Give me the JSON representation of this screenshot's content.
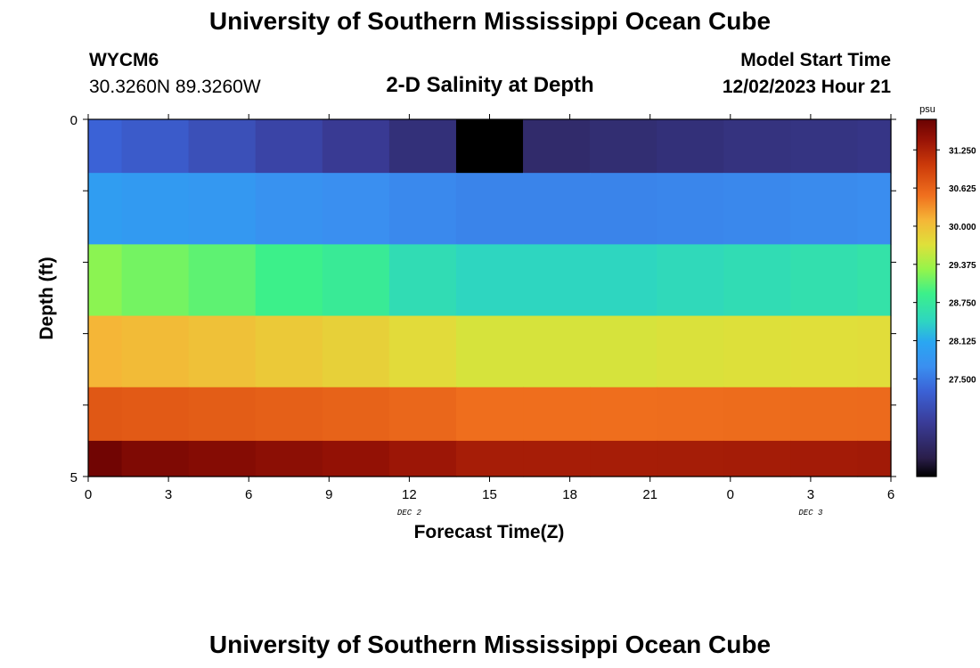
{
  "header": {
    "title": "University of Southern Mississippi Ocean Cube",
    "station_id": "WYCM6",
    "coords": "30.3260N  89.3260W",
    "plot_title": "2-D Salinity at Depth",
    "model_start_label": "Model Start Time",
    "model_start_value": "12/02/2023 Hour 21"
  },
  "footer": {
    "title": "University of Southern Mississippi Ocean Cube"
  },
  "chart_data": {
    "type": "heatmap",
    "title": "2-D Salinity at Depth",
    "xlabel": "Forecast Time(Z)",
    "ylabel": "Depth (ft)",
    "x_ticks": [
      "0",
      "3",
      "6",
      "9",
      "12",
      "15",
      "18",
      "21",
      "0",
      "3",
      "6"
    ],
    "x_range_hours": [
      0,
      30
    ],
    "day_labels": [
      {
        "text": "DEC 2",
        "at_hour": 12
      },
      {
        "text": "DEC 3",
        "at_hour": 27
      }
    ],
    "y_ticks": [
      "0",
      "5"
    ],
    "y_range": [
      0,
      5
    ],
    "column_times": [
      0,
      2.5,
      5,
      7.5,
      10,
      12.5,
      15,
      17.5,
      20,
      22.5,
      25,
      27.5,
      30
    ],
    "depth_layers": [
      0.25,
      1.25,
      2.25,
      3.25,
      4.25,
      4.75
    ],
    "salinity": [
      [
        27.3,
        27.2,
        27.05,
        26.9,
        26.75,
        26.55,
        25.9,
        26.45,
        26.5,
        26.55,
        26.6,
        26.62,
        26.65
      ],
      [
        27.95,
        27.9,
        27.85,
        27.75,
        27.7,
        27.65,
        27.6,
        27.6,
        27.6,
        27.62,
        27.64,
        27.66,
        27.68
      ],
      [
        29.25,
        29.15,
        29.05,
        28.9,
        28.8,
        28.55,
        28.45,
        28.45,
        28.45,
        28.5,
        28.55,
        28.6,
        28.65
      ],
      [
        30.1,
        30.05,
        30.0,
        29.92,
        29.85,
        29.75,
        29.65,
        29.65,
        29.65,
        29.67,
        29.69,
        29.71,
        29.73
      ],
      [
        30.72,
        30.7,
        30.68,
        30.65,
        30.62,
        30.58,
        30.52,
        30.52,
        30.52,
        30.53,
        30.54,
        30.55,
        30.56
      ],
      [
        31.7,
        31.6,
        31.55,
        31.5,
        31.45,
        31.38,
        31.3,
        31.3,
        31.3,
        31.31,
        31.32,
        31.33,
        31.34
      ]
    ],
    "colorbar": {
      "unit": "psu",
      "min": 25.9,
      "max": 31.75,
      "labels": [
        "31.250",
        "30.625",
        "30.000",
        "29.375",
        "28.750",
        "28.125",
        "27.500"
      ],
      "stops": [
        {
          "v": 25.9,
          "c": "#000000"
        },
        {
          "v": 26.2,
          "c": "#2a1e4a"
        },
        {
          "v": 26.8,
          "c": "#3a3d9a"
        },
        {
          "v": 27.3,
          "c": "#3b62d6"
        },
        {
          "v": 27.7,
          "c": "#3a8ff0"
        },
        {
          "v": 28.1,
          "c": "#2aa6f2"
        },
        {
          "v": 28.45,
          "c": "#2ed6c0"
        },
        {
          "v": 28.9,
          "c": "#3cf08a"
        },
        {
          "v": 29.3,
          "c": "#96f44a"
        },
        {
          "v": 29.7,
          "c": "#dfe03a"
        },
        {
          "v": 30.1,
          "c": "#f5b637"
        },
        {
          "v": 30.5,
          "c": "#f0701e"
        },
        {
          "v": 31.0,
          "c": "#cc3a0a"
        },
        {
          "v": 31.4,
          "c": "#9a1406"
        },
        {
          "v": 31.75,
          "c": "#6a0202"
        }
      ]
    }
  }
}
